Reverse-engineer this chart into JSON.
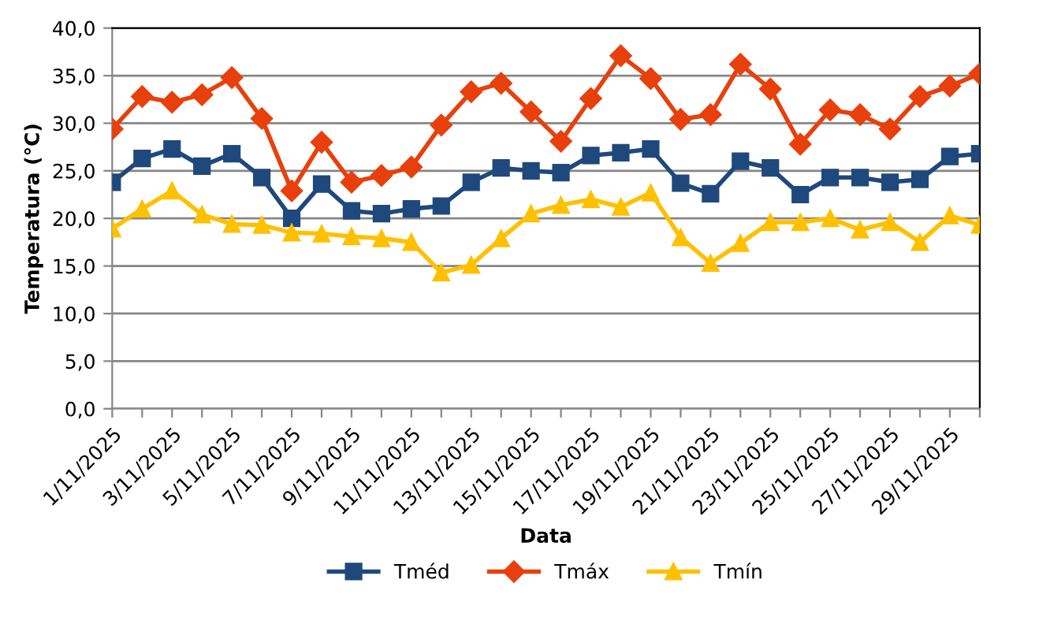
{
  "chart_data": {
    "type": "line",
    "xlabel": "Data",
    "ylabel": "Temperatura (°C)",
    "categories": [
      "1/11/2025",
      null,
      "3/11/2025",
      null,
      "5/11/2025",
      null,
      "7/11/2025",
      null,
      "9/11/2025",
      null,
      "11/11/2025",
      null,
      "13/11/2025",
      null,
      "15/11/2025",
      null,
      "17/11/2025",
      null,
      "19/11/2025",
      null,
      "21/11/2025",
      null,
      "23/11/2025",
      null,
      "25/11/2025",
      null,
      "27/11/2025",
      null,
      "29/11/2025",
      null
    ],
    "series": [
      {
        "name": "Tméd",
        "color": "#1f497d",
        "marker": "square",
        "values": [
          23.8,
          26.3,
          27.3,
          25.5,
          26.8,
          24.3,
          20.0,
          23.6,
          20.8,
          20.5,
          21.0,
          21.3,
          23.8,
          25.3,
          25.0,
          24.8,
          26.6,
          26.9,
          27.3,
          23.7,
          22.6,
          26.0,
          25.3,
          22.5,
          24.3,
          24.3,
          23.8,
          24.1,
          26.5,
          26.8
        ]
      },
      {
        "name": "Tmáx",
        "color": "#e8400c",
        "marker": "diamond",
        "values": [
          29.4,
          32.8,
          32.2,
          33.0,
          34.8,
          30.5,
          22.9,
          28.0,
          23.8,
          24.5,
          25.4,
          29.8,
          33.3,
          34.2,
          31.2,
          28.1,
          32.6,
          37.1,
          34.7,
          30.4,
          30.9,
          36.2,
          33.6,
          27.8,
          31.4,
          30.9,
          29.4,
          32.8,
          33.9,
          35.2
        ]
      },
      {
        "name": "Tmín",
        "color": "#ffc000",
        "marker": "triangle",
        "values": [
          18.9,
          21.0,
          22.9,
          20.4,
          19.4,
          19.3,
          18.5,
          18.4,
          18.1,
          17.9,
          17.5,
          14.3,
          15.1,
          17.9,
          20.5,
          21.4,
          22.0,
          21.2,
          22.7,
          18.0,
          15.3,
          17.4,
          19.6,
          19.6,
          20.0,
          18.8,
          19.6,
          17.5,
          20.3,
          19.3
        ]
      }
    ],
    "ylim": [
      0,
      40
    ],
    "yticks": [
      {
        "value": 0,
        "label": "0,0"
      },
      {
        "value": 5,
        "label": "5,0"
      },
      {
        "value": 10,
        "label": "10,0"
      },
      {
        "value": 15,
        "label": "15,0"
      },
      {
        "value": 20,
        "label": "20,0"
      },
      {
        "value": 25,
        "label": "25,0"
      },
      {
        "value": 30,
        "label": "30,0"
      },
      {
        "value": 35,
        "label": "35,0"
      },
      {
        "value": 40,
        "label": "40,0"
      }
    ],
    "grid": "y",
    "legend": "bottom",
    "line_style": "solid"
  }
}
